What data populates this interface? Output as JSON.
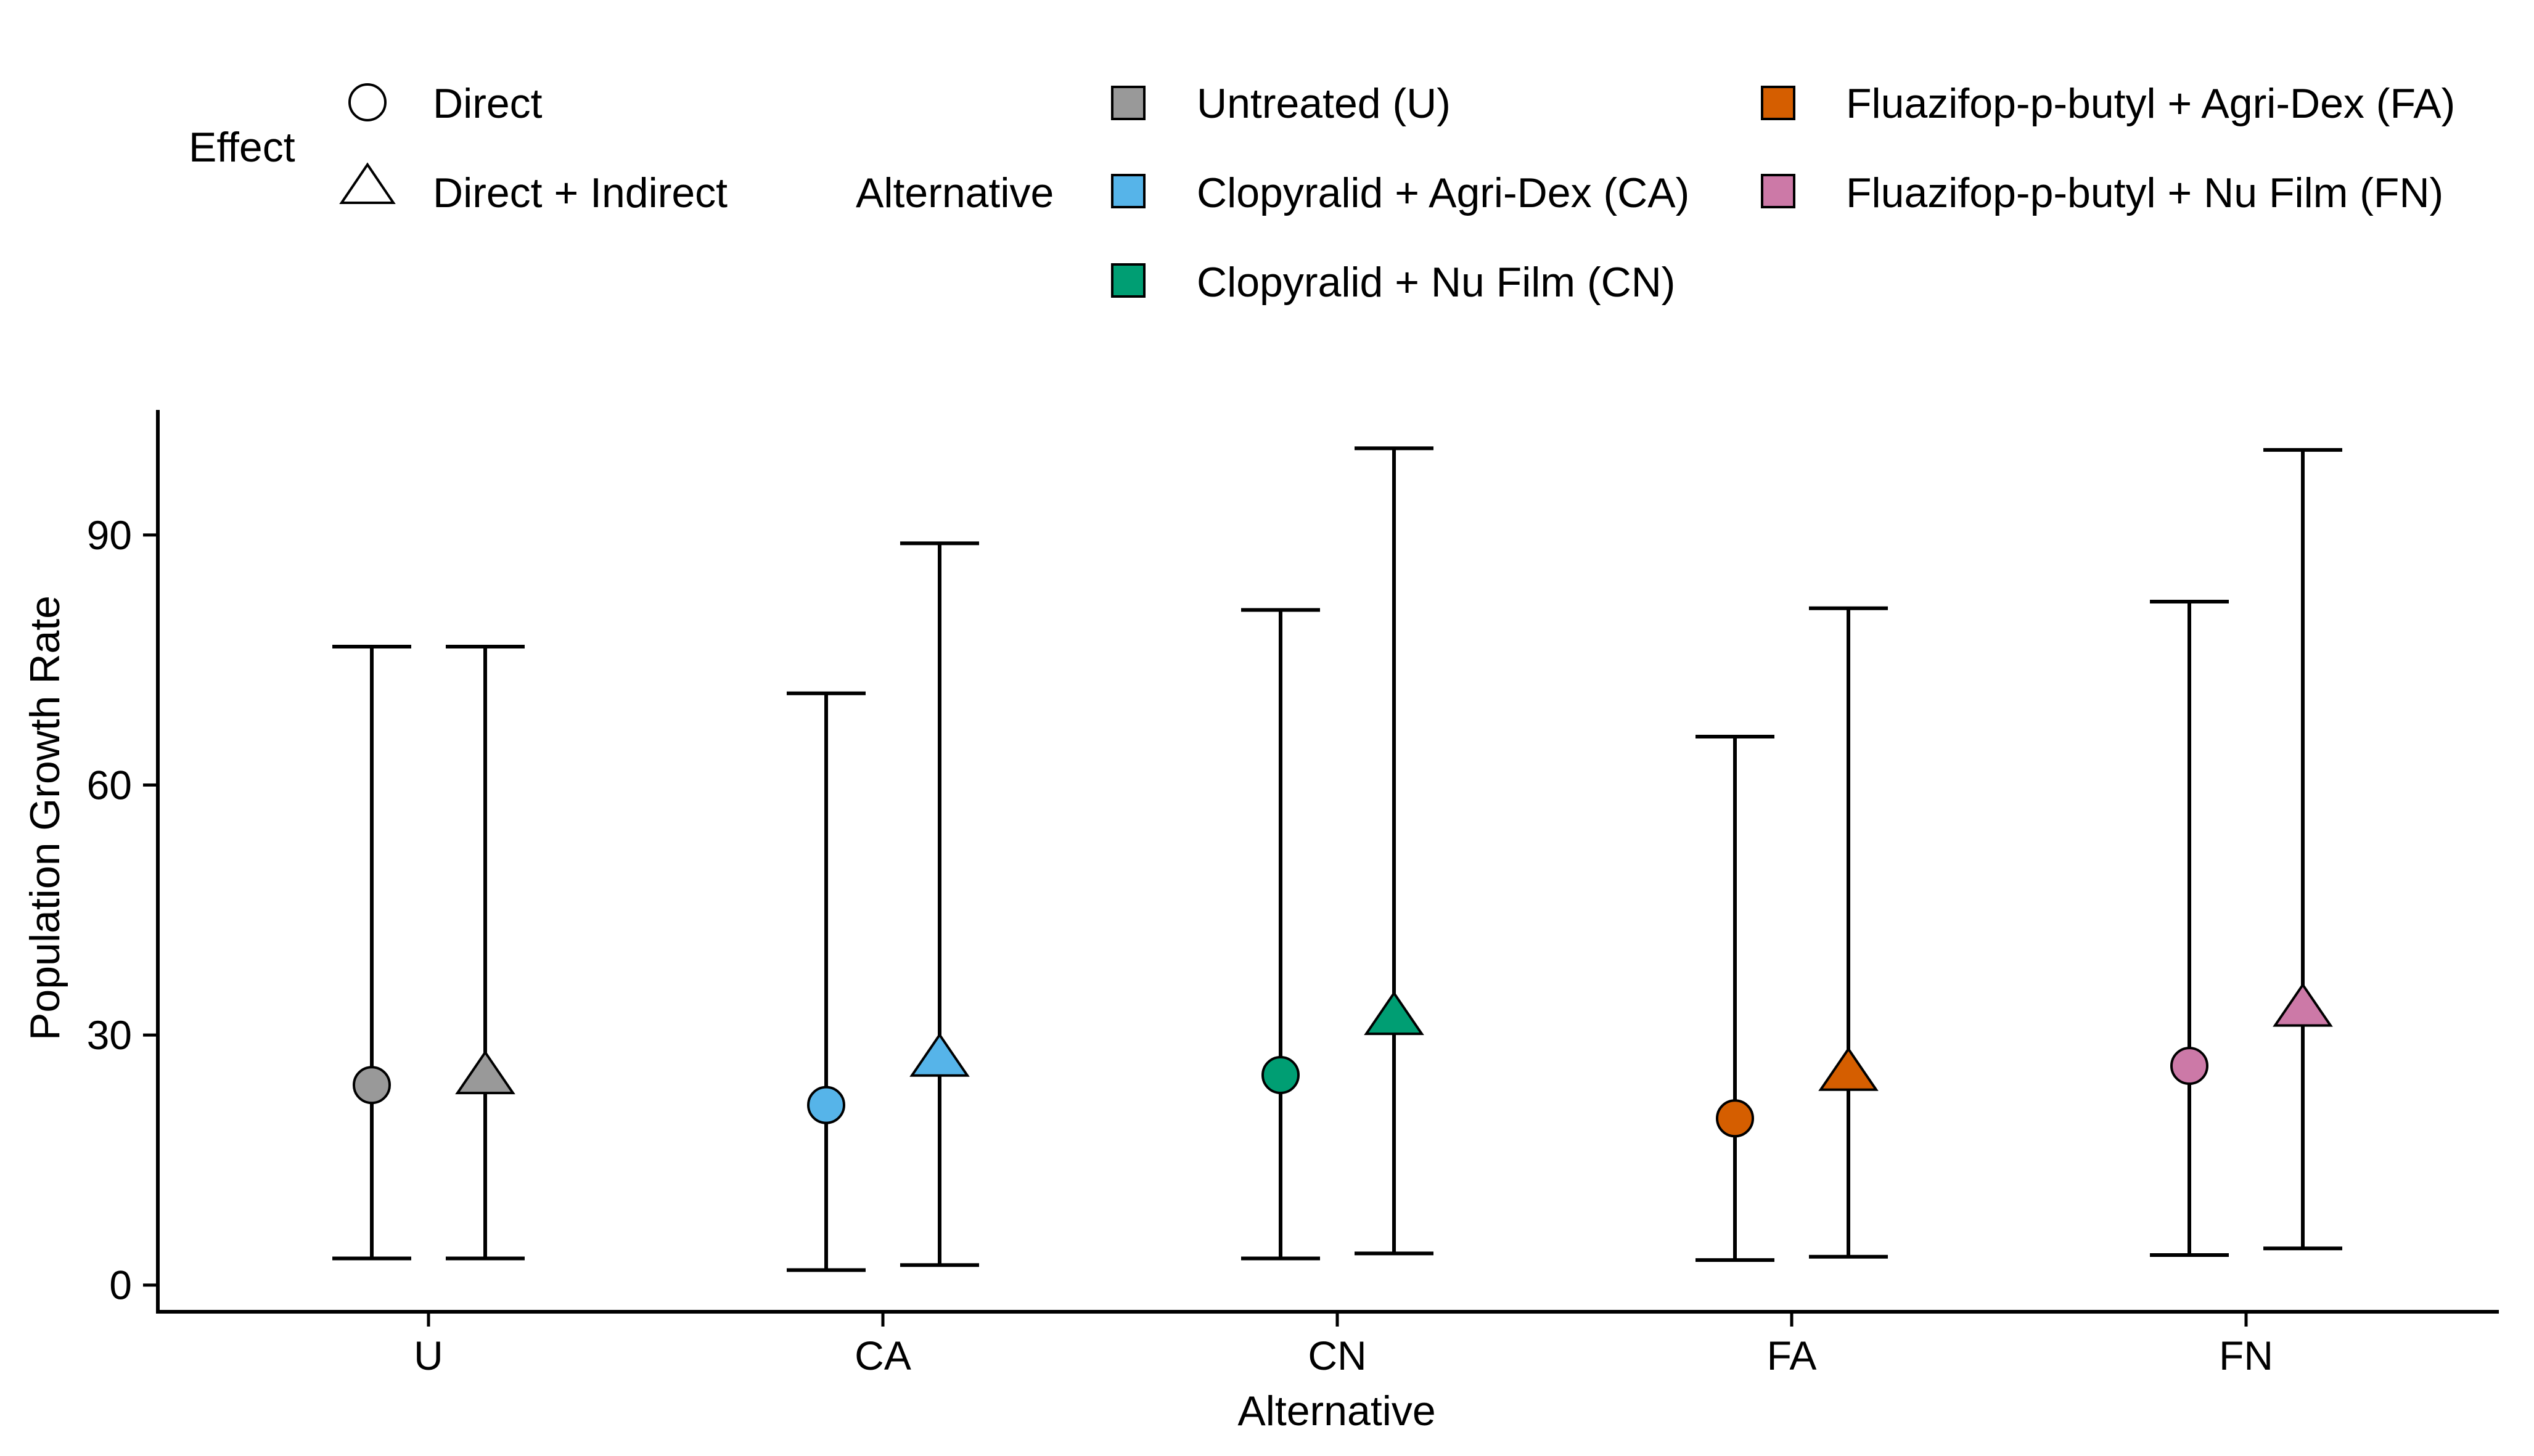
{
  "chart_data": {
    "type": "scatter",
    "xlabel": "Alternative",
    "ylabel": "Population Growth Rate",
    "categories": [
      "U",
      "CA",
      "CN",
      "FA",
      "FN"
    ],
    "ylim": [
      -3.2,
      105
    ],
    "yticks": [
      0,
      30,
      60,
      90
    ],
    "grid": false,
    "legend_position": "top",
    "effect_legend": {
      "title": "Effect",
      "items": [
        {
          "label": "Direct",
          "shape": "circle"
        },
        {
          "label": "Direct + Indirect",
          "shape": "triangle"
        }
      ]
    },
    "alternative_legend": {
      "title": "Alternative",
      "items": [
        {
          "code": "U",
          "label": "Untreated (U)",
          "color": "#999999"
        },
        {
          "code": "CA",
          "label": "Clopyralid + Agri-Dex (CA)",
          "color": "#56B4E9"
        },
        {
          "code": "CN",
          "label": "Clopyralid + Nu Film (CN)",
          "color": "#009E73"
        },
        {
          "code": "FA",
          "label": "Fluazifop-p-butyl + Agri-Dex (FA)",
          "color": "#D55E00"
        },
        {
          "code": "FN",
          "label": "Fluazifop-p-butyl + Nu Film (FN)",
          "color": "#CC79A7"
        }
      ]
    },
    "series": [
      {
        "name": "Direct",
        "shape": "circle",
        "values": [
          24.0,
          21.6,
          25.2,
          20.0,
          26.3
        ],
        "lower": [
          3.2,
          1.8,
          3.2,
          3.0,
          3.6
        ],
        "upper": [
          76.6,
          71.0,
          81.0,
          65.8,
          82.0
        ]
      },
      {
        "name": "Direct + Indirect",
        "shape": "triangle",
        "values": [
          24.9,
          27.0,
          32.0,
          25.3,
          33.0
        ],
        "lower": [
          3.2,
          2.4,
          3.8,
          3.4,
          4.4
        ],
        "upper": [
          76.6,
          89.0,
          100.4,
          81.2,
          100.2
        ]
      }
    ]
  }
}
